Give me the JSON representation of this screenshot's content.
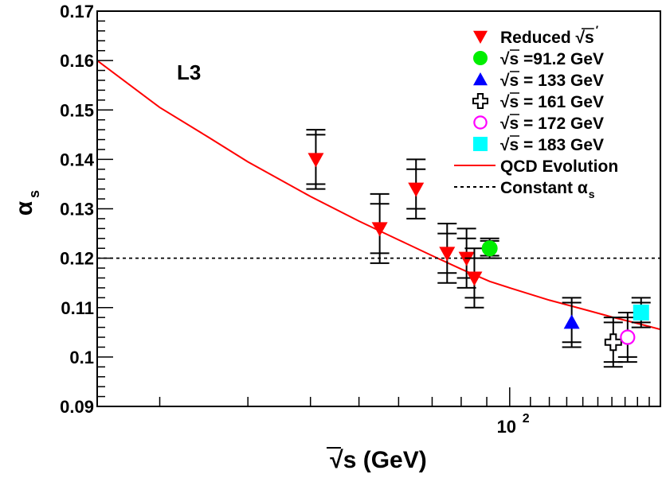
{
  "chart_data": {
    "type": "scatter",
    "experiment_label": "L3",
    "xlabel": "√s  (GeV)",
    "ylabel": "α",
    "ylabel_sub": "s",
    "xscale": "log",
    "xlim": [
      15,
      200
    ],
    "ylim": [
      0.09,
      0.17
    ],
    "x_tick_labels": [
      {
        "value": 100,
        "base": "10",
        "exp": "2"
      }
    ],
    "y_ticks": [
      0.09,
      0.1,
      0.11,
      0.12,
      0.13,
      0.14,
      0.15,
      0.16,
      0.17
    ],
    "y_tick_labels": [
      "0.09",
      "0.1",
      "0.11",
      "0.12",
      "0.13",
      "0.14",
      "0.15",
      "0.16",
      "0.17"
    ],
    "legend_position": "top-right",
    "series": [
      {
        "name": "Reduced √s′",
        "legend_text": "Reduced √s",
        "legend_prime": "′",
        "marker": "triangle-down",
        "color": "#ff0000",
        "points": [
          {
            "x": 41,
            "y": 0.14,
            "stat": [
              0.135,
              0.145
            ],
            "total": [
              0.134,
              0.146
            ]
          },
          {
            "x": 55,
            "y": 0.126,
            "stat": [
              0.121,
              0.131
            ],
            "total": [
              0.119,
              0.133
            ]
          },
          {
            "x": 65,
            "y": 0.134,
            "stat": [
              0.13,
              0.138
            ],
            "total": [
              0.128,
              0.14
            ]
          },
          {
            "x": 75,
            "y": 0.121,
            "stat": [
              0.117,
              0.125
            ],
            "total": [
              0.115,
              0.127
            ]
          },
          {
            "x": 82,
            "y": 0.12,
            "stat": [
              0.116,
              0.124
            ],
            "total": [
              0.114,
              0.126
            ]
          },
          {
            "x": 85,
            "y": 0.116,
            "stat": [
              0.112,
              0.12
            ],
            "total": [
              0.11,
              0.122
            ]
          }
        ]
      },
      {
        "name": "√s =91.2 GeV",
        "marker": "circle",
        "color": "#00ee00",
        "points": [
          {
            "x": 91.2,
            "y": 0.122,
            "stat": [
              0.1205,
              0.1235
            ],
            "total": [
              0.12,
              0.124
            ]
          }
        ]
      },
      {
        "name": "√s = 133 GeV",
        "marker": "triangle-up",
        "color": "#0000ff",
        "points": [
          {
            "x": 133,
            "y": 0.107,
            "stat": [
              0.103,
              0.111
            ],
            "total": [
              0.102,
              0.112
            ]
          }
        ]
      },
      {
        "name": "√s = 161 GeV",
        "marker": "open-cross",
        "color": "#000000",
        "points": [
          {
            "x": 161,
            "y": 0.103,
            "stat": [
              0.099,
              0.107
            ],
            "total": [
              0.098,
              0.108
            ]
          }
        ]
      },
      {
        "name": "√s = 172 GeV",
        "marker": "open-circle",
        "color": "#ff00ff",
        "points": [
          {
            "x": 172,
            "y": 0.104,
            "stat": [
              0.1,
              0.108
            ],
            "total": [
              0.099,
              0.109
            ]
          }
        ]
      },
      {
        "name": "√s = 183 GeV",
        "marker": "square",
        "color": "#00ffff",
        "points": [
          {
            "x": 183,
            "y": 0.109,
            "stat": [
              0.107,
              0.111
            ],
            "total": [
              0.106,
              0.112
            ]
          }
        ]
      }
    ],
    "curves": [
      {
        "name": "QCD Evolution",
        "style": "solid",
        "color": "#ff0000",
        "points": [
          [
            15,
            0.16
          ],
          [
            20,
            0.1505
          ],
          [
            25,
            0.1445
          ],
          [
            30,
            0.1395
          ],
          [
            40,
            0.1325
          ],
          [
            50,
            0.1275
          ],
          [
            60,
            0.1237
          ],
          [
            70,
            0.1205
          ],
          [
            80,
            0.1178
          ],
          [
            91.2,
            0.1153
          ],
          [
            100,
            0.114
          ],
          [
            120,
            0.1115
          ],
          [
            140,
            0.1097
          ],
          [
            160,
            0.1081
          ],
          [
            180,
            0.1068
          ],
          [
            200,
            0.1056
          ]
        ]
      },
      {
        "name": "Constant α",
        "name_sub": "s",
        "style": "dashed",
        "color": "#000000",
        "points": [
          [
            15,
            0.12
          ],
          [
            200,
            0.12
          ]
        ]
      }
    ]
  }
}
